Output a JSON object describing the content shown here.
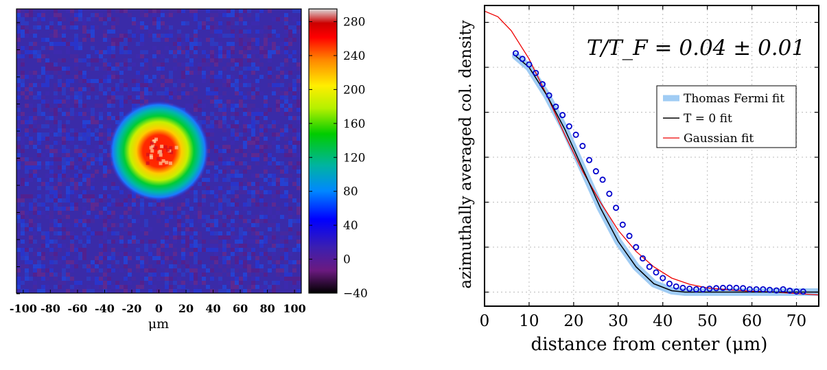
{
  "chart_data": [
    {
      "type": "heatmap",
      "title": "",
      "xlabel": "μm",
      "ylabel": "",
      "xlim": [
        -105,
        105
      ],
      "x_ticks": [
        "-100",
        "-80",
        "-60",
        "-40",
        "-20",
        "0",
        "20",
        "40",
        "60",
        "80",
        "100"
      ],
      "colorbar": {
        "range": [
          -40,
          295
        ],
        "ticks": [
          "280",
          "240",
          "200",
          "160",
          "120",
          "80",
          "40",
          "0",
          "−40"
        ],
        "colors": [
          "#000000",
          "#7a1f8f",
          "#3b1fb5",
          "#0000ff",
          "#0088ff",
          "#00bb88",
          "#00cc00",
          "#aaee00",
          "#ffee00",
          "#ff8800",
          "#ff0000",
          "#dddddd"
        ]
      },
      "cloud": {
        "center_um": [
          0,
          10
        ],
        "radius_um": 37,
        "peak_value": 280,
        "background_value": 20
      },
      "grid": false
    },
    {
      "type": "line",
      "title": "",
      "xlabel": "distance from center (μm)",
      "ylabel": "azimuthally averaged col. density",
      "annotation": "T/T_F = 0.04 ± 0.01",
      "xlim": [
        0,
        75
      ],
      "ylim": [
        -0.05,
        1.02
      ],
      "x_ticks": [
        "0",
        "10",
        "20",
        "30",
        "40",
        "50",
        "60",
        "70"
      ],
      "grid": true,
      "legend_position": "upper right",
      "legend": [
        {
          "label": "Thomas Fermi fit",
          "color": "#a0ccf4"
        },
        {
          "label": "T = 0 fit",
          "color": "#000000"
        },
        {
          "label": "Gaussian fit",
          "color": "#ee0000"
        }
      ],
      "series": [
        {
          "name": "Thomas Fermi fit",
          "color": "#a0ccf4",
          "x": [
            7,
            10,
            14,
            18,
            22,
            26,
            30,
            34,
            38,
            42,
            45,
            50,
            60,
            75
          ],
          "y": [
            0.84,
            0.8,
            0.7,
            0.58,
            0.44,
            0.3,
            0.18,
            0.09,
            0.03,
            0.005,
            0.0,
            0.0,
            0.0,
            0.0
          ]
        },
        {
          "name": "T = 0 fit",
          "color": "#000000",
          "x": [
            7,
            10,
            14,
            18,
            22,
            26,
            30,
            34,
            38,
            42,
            45,
            50,
            60,
            75
          ],
          "y": [
            0.84,
            0.8,
            0.7,
            0.58,
            0.44,
            0.3,
            0.18,
            0.09,
            0.03,
            0.005,
            0.0,
            0.0,
            0.0,
            0.0
          ]
        },
        {
          "name": "Gaussian fit",
          "color": "#ee0000",
          "x": [
            0,
            3,
            6,
            10,
            14,
            18,
            22,
            26,
            30,
            34,
            38,
            42,
            46,
            50,
            55,
            60,
            65,
            70,
            75
          ],
          "y": [
            1.0,
            0.98,
            0.93,
            0.83,
            0.7,
            0.56,
            0.43,
            0.32,
            0.22,
            0.145,
            0.09,
            0.05,
            0.028,
            0.015,
            0.008,
            0.003,
            0.0,
            -0.005,
            -0.01
          ]
        },
        {
          "name": "data",
          "color": "#0000cc",
          "x": [
            7,
            8.5,
            10,
            11.5,
            13,
            14.5,
            16,
            17.5,
            19,
            20.5,
            22,
            23.5,
            25,
            26.5,
            28,
            29.5,
            31,
            32.5,
            34,
            35.5,
            37,
            38.5,
            40,
            41.5,
            43,
            44.5,
            46,
            47.5,
            49,
            50.5,
            52,
            53.5,
            55,
            56.5,
            58,
            59.5,
            61,
            62.5,
            64,
            65.5,
            67,
            68.5,
            70,
            71.5
          ],
          "y": [
            0.85,
            0.83,
            0.81,
            0.78,
            0.74,
            0.7,
            0.66,
            0.63,
            0.59,
            0.56,
            0.52,
            0.47,
            0.43,
            0.4,
            0.35,
            0.3,
            0.24,
            0.2,
            0.16,
            0.12,
            0.09,
            0.07,
            0.05,
            0.03,
            0.02,
            0.015,
            0.012,
            0.01,
            0.01,
            0.012,
            0.014,
            0.015,
            0.016,
            0.015,
            0.014,
            0.01,
            0.01,
            0.01,
            0.008,
            0.006,
            0.01,
            0.005,
            0.002,
            0.002
          ]
        }
      ]
    }
  ]
}
